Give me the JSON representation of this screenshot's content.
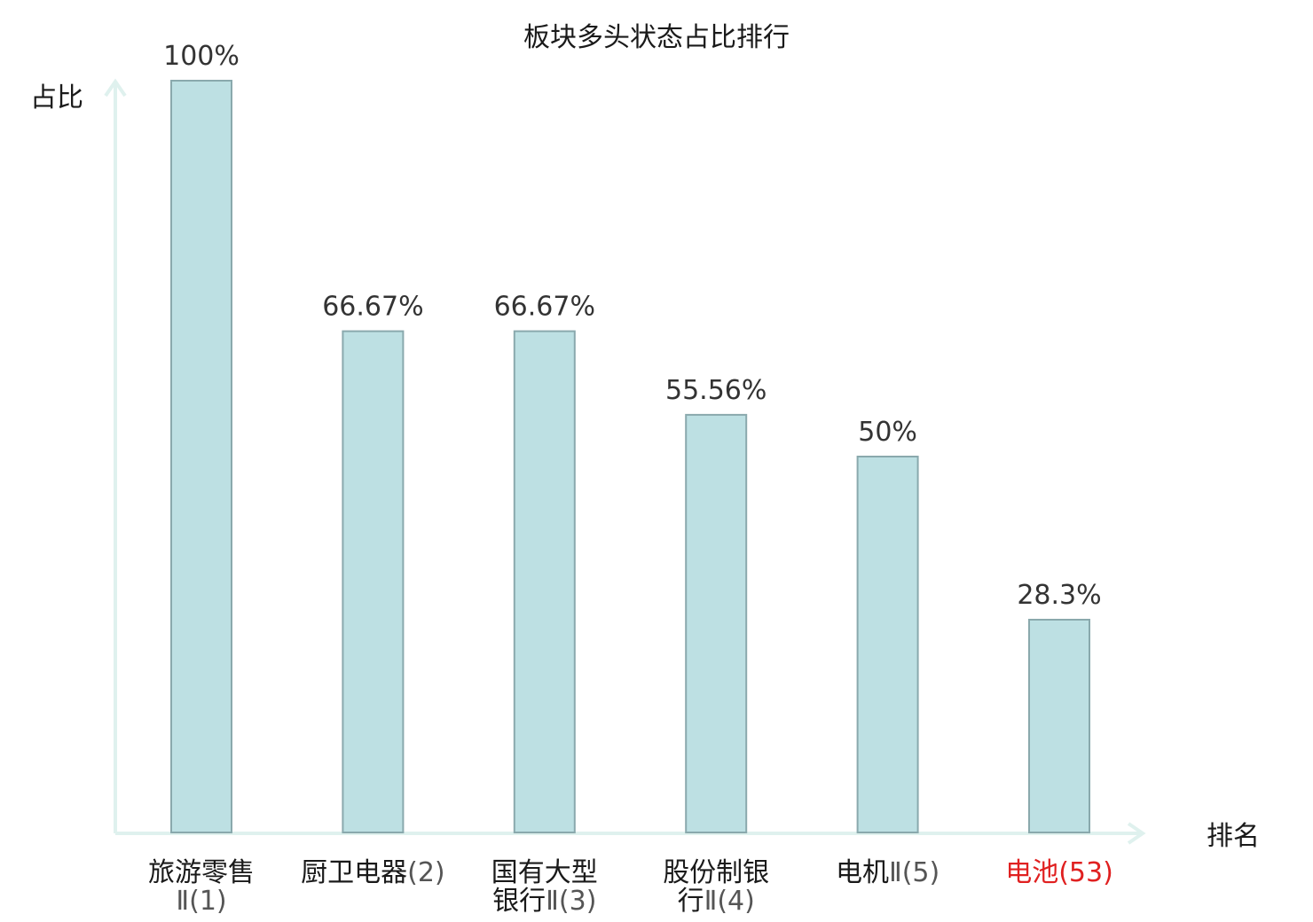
{
  "chart_data": {
    "type": "bar",
    "title": "板块多头状态占比排行",
    "ylabel": "占比",
    "xlabel": "排名",
    "ylim": [
      0,
      100
    ],
    "categories": [
      {
        "lines": [
          {
            "zh": "旅游零售",
            "num": ""
          },
          {
            "zh": "",
            "num": "Ⅱ(1)"
          }
        ],
        "highlight": false
      },
      {
        "lines": [
          {
            "zh": "厨卫电器",
            "num": "(2)"
          }
        ],
        "highlight": false
      },
      {
        "lines": [
          {
            "zh": "国有大型",
            "num": ""
          },
          {
            "zh": "银行",
            "num": "Ⅱ(3)"
          }
        ],
        "highlight": false
      },
      {
        "lines": [
          {
            "zh": "股份制银",
            "num": ""
          },
          {
            "zh": "行",
            "num": "Ⅱ(4)"
          }
        ],
        "highlight": false
      },
      {
        "lines": [
          {
            "zh": "电机",
            "num": "Ⅱ(5)"
          }
        ],
        "highlight": false
      },
      {
        "lines": [
          {
            "zh": "电池",
            "num": "(53)"
          }
        ],
        "highlight": true
      }
    ],
    "values": [
      100,
      66.67,
      66.67,
      55.56,
      50,
      28.3
    ],
    "value_labels": [
      "100%",
      "66.67%",
      "66.67%",
      "55.56%",
      "50%",
      "28.3%"
    ],
    "colors": {
      "bar_fill": "#bde0e3",
      "bar_stroke": "#8aa9ad",
      "axis": "#dff1ee",
      "highlight": "#e02020"
    },
    "grid": false,
    "legend": "none"
  }
}
